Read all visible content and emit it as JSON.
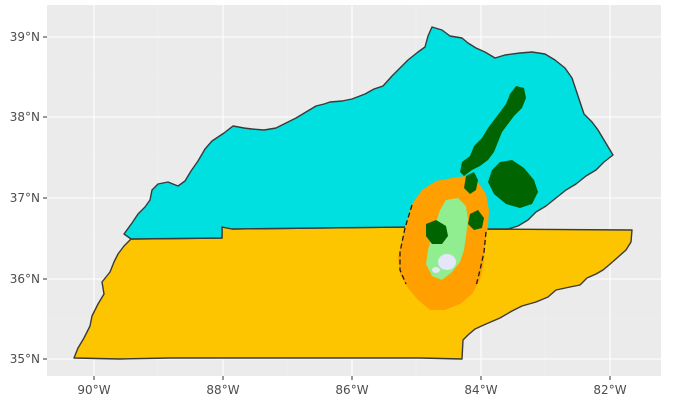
{
  "colors": {
    "panel_background": "#ebebeb",
    "kentucky_fill": "#00e0e0",
    "tennessee_fill": "#fdc400",
    "buffer_fill": "#ff9f00",
    "dark_green": "#006400",
    "light_green": "#90ee90",
    "lavender": "#e6e6fa",
    "boundary": "#3a3a3a"
  },
  "features": [
    {
      "name": "Kentucky",
      "fill_color": "kentucky_fill"
    },
    {
      "name": "Tennessee",
      "fill_color": "tennessee_fill"
    },
    {
      "name": "buffer zone",
      "fill_color": "buffer_fill"
    },
    {
      "name": "forest patches",
      "fill_color": "dark_green"
    },
    {
      "name": "inner habitat",
      "fill_color": "light_green"
    }
  ],
  "axes": {
    "x_ticks": [
      "90°W",
      "88°W",
      "86°W",
      "84°W",
      "82°W"
    ],
    "y_ticks": [
      "35°N",
      "36°N",
      "37°N",
      "38°N",
      "39°N"
    ],
    "x_tick_values": [
      -90,
      -88,
      -86,
      -84,
      -82
    ],
    "y_tick_values": [
      35,
      36,
      37,
      38,
      39
    ],
    "xlim": [
      -90.8,
      -81.3
    ],
    "ylim": [
      34.85,
      39.35
    ]
  }
}
